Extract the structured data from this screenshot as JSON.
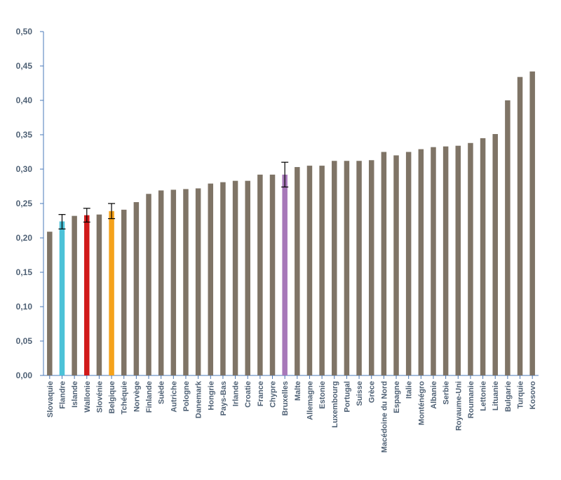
{
  "chart_data": {
    "type": "bar",
    "title": "",
    "xlabel": "",
    "ylabel": "",
    "ylim": [
      0,
      0.5
    ],
    "yticks": [
      0.0,
      0.05,
      0.1,
      0.15,
      0.2,
      0.25,
      0.3,
      0.35,
      0.4,
      0.45,
      0.5
    ],
    "ytick_labels": [
      "0,00",
      "0,05",
      "0,10",
      "0,15",
      "0,20",
      "0,25",
      "0,30",
      "0,35",
      "0,40",
      "0,45",
      "0,50"
    ],
    "grid": false,
    "legend": "none",
    "categories": [
      "Slovaquie",
      "Flandre",
      "Islande",
      "Wallonie",
      "Slovénie",
      "Belgique",
      "Tchéquie",
      "Norvège",
      "Finlande",
      "Suède",
      "Autriche",
      "Pologne",
      "Danemark",
      "Hongrie",
      "Pays-Bas",
      "Irlande",
      "Croatie",
      "France",
      "Chypre",
      "Bruxelles",
      "Malte",
      "Allemagne",
      "Estonie",
      "Luxembourg",
      "Portugal",
      "Suisse",
      "Grèce",
      "Macédoine du Nord",
      "Espagne",
      "Italie",
      "Monténégro",
      "Albanie",
      "Serbie",
      "Royaume-Uni",
      "Roumanie",
      "Lettonie",
      "Lituanie",
      "Bulgarie",
      "Turquie",
      "Kosovo"
    ],
    "values": [
      0.209,
      0.224,
      0.232,
      0.233,
      0.234,
      0.239,
      0.241,
      0.252,
      0.264,
      0.269,
      0.27,
      0.271,
      0.272,
      0.279,
      0.281,
      0.283,
      0.283,
      0.292,
      0.292,
      0.292,
      0.303,
      0.305,
      0.305,
      0.312,
      0.312,
      0.312,
      0.313,
      0.325,
      0.32,
      0.325,
      0.329,
      0.332,
      0.333,
      0.334,
      0.338,
      0.345,
      0.351,
      0.4,
      0.434,
      0.442
    ],
    "colors": {
      "default": "#7f7466",
      "Flandre": "#4cc2d8",
      "Wallonie": "#d11a1a",
      "Belgique": "#f5a21b",
      "Bruxelles": "#a778b9"
    },
    "error_bars": [
      {
        "category": "Flandre",
        "low": 0.213,
        "high": 0.234
      },
      {
        "category": "Wallonie",
        "low": 0.223,
        "high": 0.243
      },
      {
        "category": "Belgique",
        "low": 0.228,
        "high": 0.25
      },
      {
        "category": "Bruxelles",
        "low": 0.274,
        "high": 0.31
      }
    ]
  }
}
